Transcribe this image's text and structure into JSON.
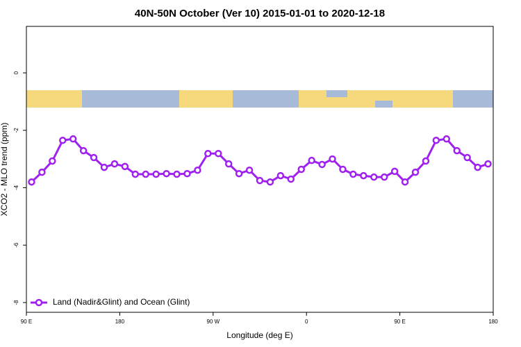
{
  "chart_data": {
    "type": "line",
    "title": "40N-50N October (Ver 10)   2015-01-01 to 2020-12-18",
    "xlabel": "Longitude (deg E)",
    "ylabel": "XCO2 - MLO trend (ppm)",
    "x": [
      95,
      105,
      115,
      125,
      135,
      145,
      155,
      165,
      175,
      185,
      195,
      205,
      215,
      225,
      235,
      245,
      255,
      265,
      275,
      285,
      295,
      305,
      315,
      325,
      335,
      345,
      355,
      365,
      375,
      385,
      395,
      405,
      415,
      425,
      435,
      445,
      455,
      465,
      475,
      485,
      495,
      505,
      515,
      525,
      535
    ],
    "series": [
      {
        "name": "Land (Nadir&Glint) and Ocean (Glint)",
        "color": "#a020f0",
        "values": [
          -3.8,
          -3.46,
          -3.07,
          -2.35,
          -2.3,
          -2.71,
          -2.95,
          -3.29,
          -3.17,
          -3.26,
          -3.53,
          -3.53,
          -3.53,
          -3.51,
          -3.53,
          -3.51,
          -3.39,
          -2.81,
          -2.81,
          -3.17,
          -3.51,
          -3.39,
          -3.75,
          -3.8,
          -3.58,
          -3.7,
          -3.36,
          -3.05,
          -3.19,
          -3.0,
          -3.36,
          -3.53,
          -3.58,
          -3.63,
          -3.63,
          -3.43,
          -3.8,
          -3.46,
          -3.07,
          -2.35,
          -2.3,
          -2.71,
          -2.95,
          -3.29,
          -3.17
        ]
      }
    ],
    "xlim": [
      90,
      540
    ],
    "xticks": [
      {
        "value": 90,
        "label": "90 E"
      },
      180,
      {
        "value": 270,
        "label": "90 W"
      },
      {
        "value": 360,
        "label": "0"
      },
      {
        "value": 450,
        "label": "90 E"
      },
      {
        "value": 540,
        "label": "180"
      }
    ],
    "ylim": [
      -8.34,
      1.62
    ],
    "yticks": [
      0,
      -2,
      -4,
      -6,
      -8
    ],
    "legend": "bottom-left"
  }
}
